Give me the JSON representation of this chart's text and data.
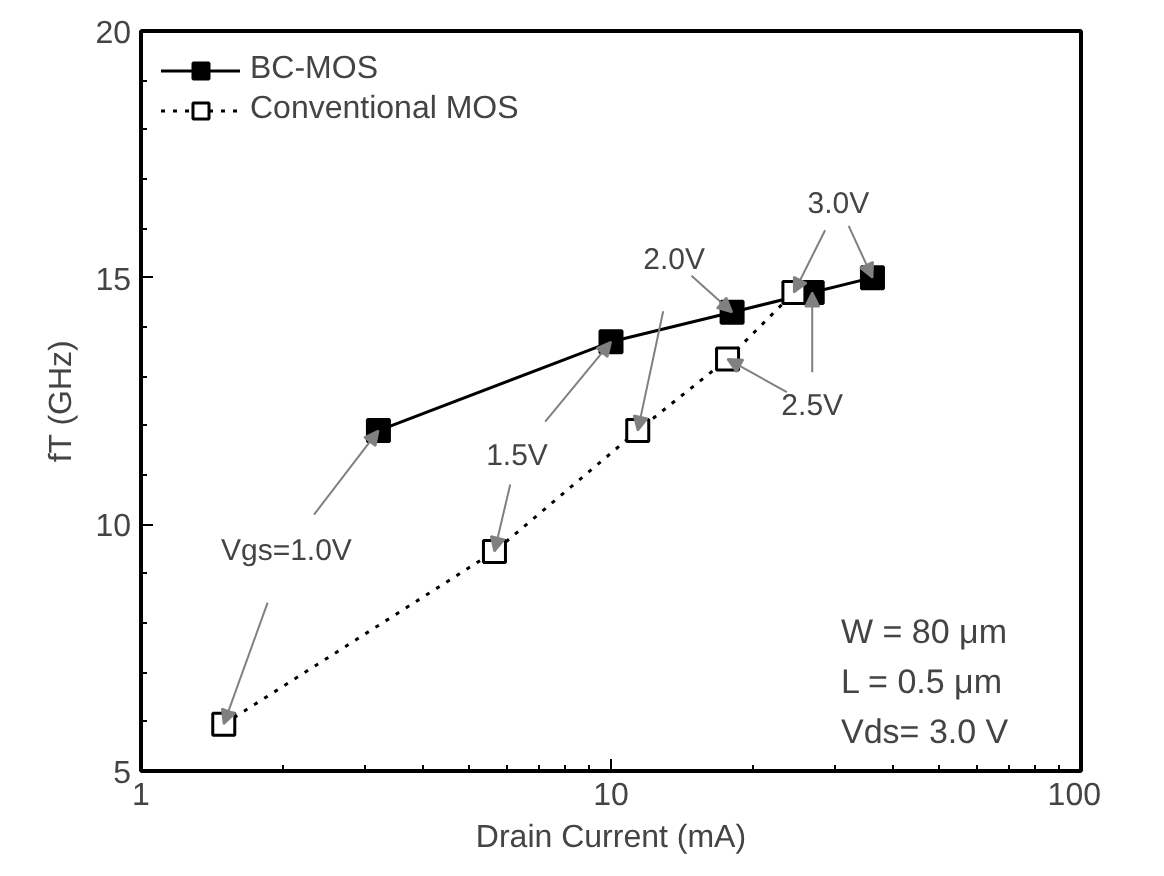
{
  "chart_data": {
    "type": "line",
    "xlabel": "Drain Current (mA)",
    "ylabel": "fT (GHz)",
    "log": "x",
    "xlim": [
      1,
      100
    ],
    "xticks": [
      1,
      10,
      100
    ],
    "ylim": [
      5,
      20
    ],
    "yticks": [
      5,
      10,
      15,
      20
    ],
    "grid": false,
    "legend": "top left",
    "marker": "square",
    "series": [
      {
        "name": "BC-MOS",
        "color": "#000000",
        "line_style": "solid",
        "x": [
          3.2,
          10,
          18.1,
          26.8,
          36
        ],
        "values": [
          11.9,
          13.7,
          14.3,
          14.7,
          15.0
        ]
      },
      {
        "name": "Conventional MOS",
        "color": "#000000",
        "line_style": "dotted",
        "x": [
          1.5,
          5.65,
          11.4,
          17.7,
          24.5
        ],
        "values": [
          5.95,
          9.45,
          11.9,
          13.35,
          14.7
        ]
      }
    ],
    "annotations": [
      {
        "text": "Vgs=1.0V",
        "x": 3.2,
        "y": 11.9
      },
      {
        "text": "1.5V",
        "x": 10,
        "y": 13.7
      },
      {
        "text": "2.0V",
        "x": 18.1,
        "y": 14.3
      },
      {
        "text": "2.5V",
        "x": 26.8,
        "y": 14.7
      },
      {
        "text": "3.0V",
        "x": 36,
        "y": 15.0
      },
      "W   =  80 μm",
      "L    =  0.5 μm",
      "Vds= 3.0 V"
    ]
  }
}
